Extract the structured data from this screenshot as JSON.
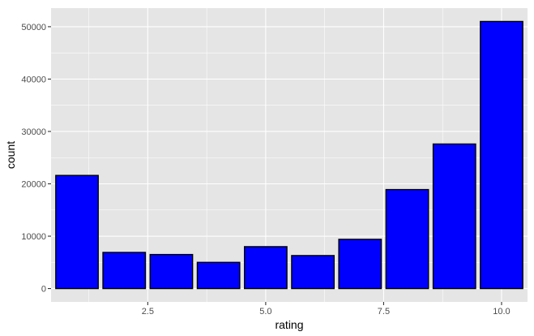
{
  "chart_data": {
    "type": "bar",
    "xlabel": "rating",
    "ylabel": "count",
    "x_ticks": [
      2.5,
      5.0,
      7.5,
      10.0
    ],
    "x_tick_labels": [
      "2.5",
      "5.0",
      "7.5",
      "10.0"
    ],
    "y_ticks": [
      0,
      10000,
      20000,
      30000,
      40000,
      50000
    ],
    "y_tick_labels": [
      "0",
      "10000",
      "20000",
      "30000",
      "40000",
      "50000"
    ],
    "xlim": [
      0.45,
      10.55
    ],
    "ylim": [
      -2550,
      53550
    ],
    "bar_width": 0.9,
    "x": [
      1,
      2,
      3,
      4,
      5,
      6,
      7,
      8,
      9,
      10
    ],
    "values": [
      21600,
      6900,
      6500,
      5000,
      8000,
      6300,
      9400,
      18900,
      27600,
      51000
    ],
    "grid": true,
    "colors": {
      "panel_background": "#e5e5e5",
      "grid_major": "#ffffff",
      "bar_fill": "#0000ff",
      "bar_stroke": "#000000",
      "tick_text": "#4d4d4d",
      "tick_mark": "#333333"
    }
  }
}
